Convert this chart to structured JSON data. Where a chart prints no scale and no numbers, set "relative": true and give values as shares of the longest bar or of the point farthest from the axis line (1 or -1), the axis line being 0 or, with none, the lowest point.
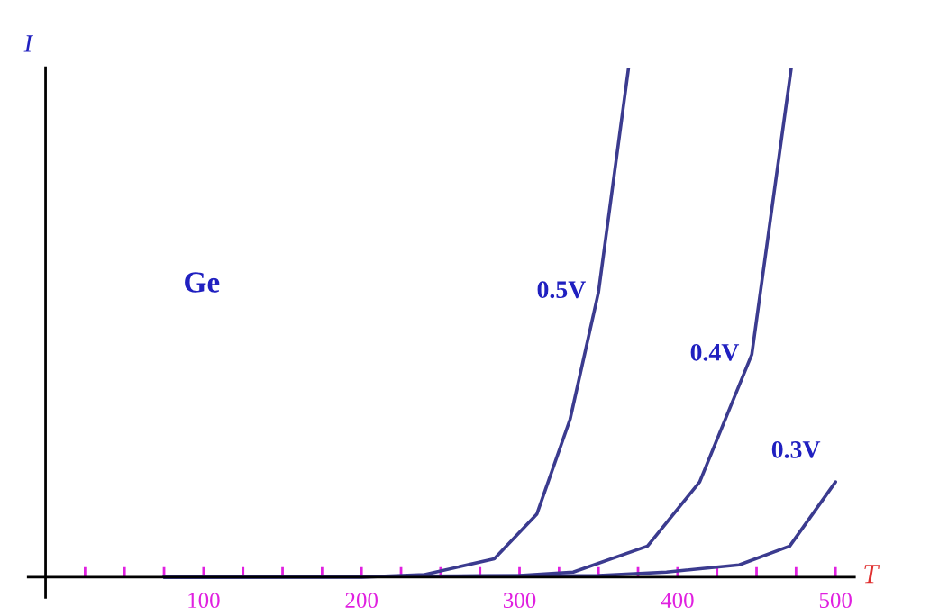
{
  "chart_data": {
    "type": "line",
    "relative": true,
    "xlabel": "T",
    "ylabel": "I",
    "annotations": [
      "Ge"
    ],
    "xlim": [
      -11,
      512
    ],
    "xticks": [
      {
        "value": 25,
        "label": null
      },
      {
        "value": 50,
        "label": null
      },
      {
        "value": 75,
        "label": null
      },
      100,
      {
        "value": 125,
        "label": null
      },
      {
        "value": 150,
        "label": null
      },
      {
        "value": 175,
        "label": null
      },
      200,
      {
        "value": 225,
        "label": null
      },
      {
        "value": 250,
        "label": null
      },
      {
        "value": 275,
        "label": null
      },
      300,
      {
        "value": 325,
        "label": null
      },
      {
        "value": 350,
        "label": null
      },
      {
        "value": 375,
        "label": null
      },
      400,
      {
        "value": 425,
        "label": null
      },
      {
        "value": 450,
        "label": null
      },
      {
        "value": 475,
        "label": null
      },
      500
    ],
    "grid": false,
    "legend": false,
    "series": [
      {
        "name": "0.5V",
        "color": "#3b3b8f",
        "x": [
          75,
          200,
          240,
          284,
          311,
          332,
          350,
          369
        ],
        "values": [
          0,
          0,
          0.005,
          0.036,
          0.124,
          0.31,
          0.56,
          1.0
        ]
      },
      {
        "name": "0.4V",
        "color": "#3b3b8f",
        "x": [
          75,
          300,
          334,
          381,
          414,
          447,
          472
        ],
        "values": [
          0,
          0.003,
          0.01,
          0.061,
          0.187,
          0.437,
          1.0
        ]
      },
      {
        "name": "0.3V",
        "color": "#3b3b8f",
        "x": [
          75,
          350,
          393,
          439,
          471,
          500
        ],
        "values": [
          0,
          0.003,
          0.01,
          0.024,
          0.061,
          0.187
        ]
      }
    ]
  }
}
